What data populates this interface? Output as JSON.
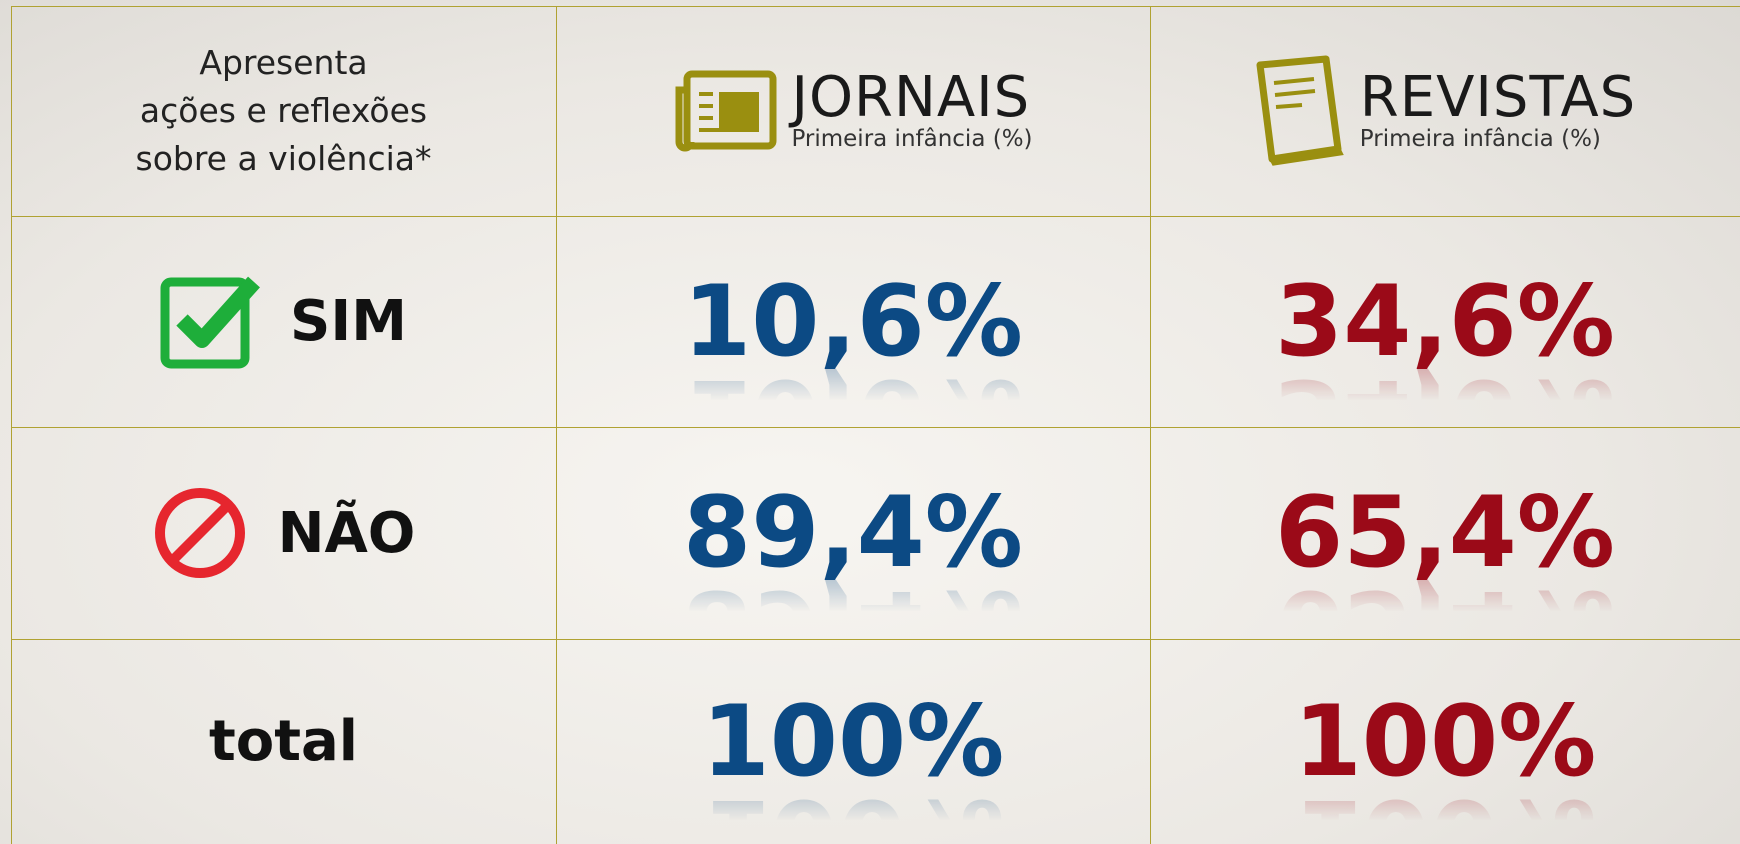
{
  "table": {
    "header": {
      "label_lines": [
        "Apresenta",
        "ações e reflexões",
        "sobre a violência*"
      ],
      "columns": [
        {
          "title": "JORNAIS",
          "subtitle": "Primeira infância (%)"
        },
        {
          "title": "REVISTAS",
          "subtitle": "Primeira infância (%)"
        }
      ]
    },
    "rows": [
      {
        "label": "SIM",
        "values": [
          "10,6%",
          "34,6%"
        ]
      },
      {
        "label": "NÃO",
        "values": [
          "89,4%",
          "65,4%"
        ]
      },
      {
        "label": "total",
        "values": [
          "100%",
          "100%"
        ]
      }
    ]
  }
}
